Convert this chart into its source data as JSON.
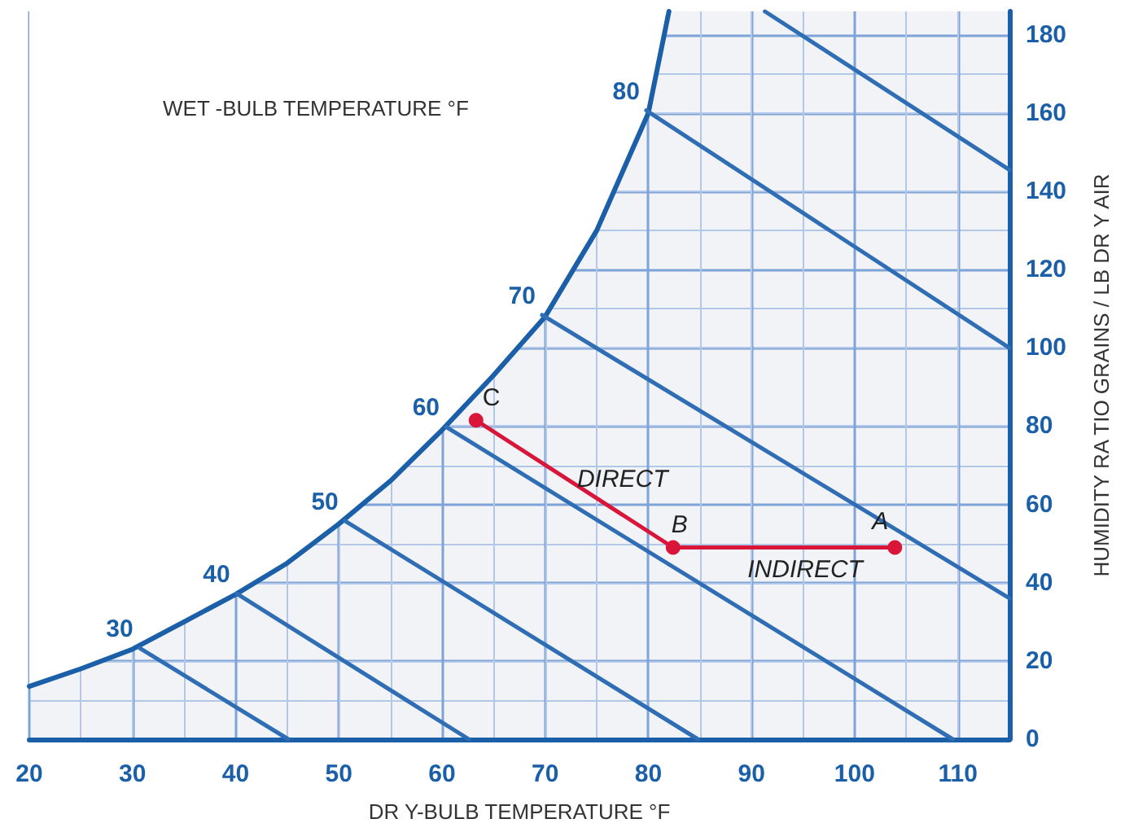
{
  "chart_data": {
    "type": "line",
    "xlabel": "DR Y-BULB TEMPERATURE °F",
    "ylabel": "HUMIDITY RA TIO GRAINS / LB DR Y AIR",
    "xlim": [
      20,
      115
    ],
    "xticks": [
      20,
      30,
      40,
      50,
      60,
      70,
      80,
      90,
      100,
      110
    ],
    "ylim": [
      0,
      186
    ],
    "yticks": [
      0,
      20,
      40,
      60,
      80,
      100,
      120,
      140,
      160,
      180
    ],
    "grid": true,
    "legend": false,
    "marker": "none",
    "line_style": "solid",
    "series": [
      {
        "color": "#1a5fa8",
        "x": [
          20,
          25,
          30,
          35,
          40,
          45,
          50,
          55,
          60,
          65,
          70,
          75,
          80,
          82
        ],
        "values": [
          13.5,
          18,
          23,
          30,
          37,
          45,
          55,
          66,
          79,
          93,
          108,
          130,
          160,
          186
        ]
      },
      {
        "color": "#2f6db5",
        "x": [
          30.7,
          45.1
        ],
        "values": [
          23.3,
          0
        ]
      },
      {
        "color": "#2f6db5",
        "x": [
          40.1,
          62.6
        ],
        "values": [
          37.2,
          0
        ]
      },
      {
        "color": "#2f6db5",
        "x": [
          50.6,
          84.8
        ],
        "values": [
          55.8,
          0
        ]
      },
      {
        "color": "#2f6db5",
        "x": [
          60.4,
          109.5
        ],
        "values": [
          79.8,
          0
        ]
      },
      {
        "color": "#2f6db5",
        "x": [
          69.7,
          115
        ],
        "values": [
          108.4,
          36
        ]
      },
      {
        "color": "#2f6db5",
        "x": [
          79.8,
          115
        ],
        "values": [
          160.7,
          100
        ]
      },
      {
        "color": "#2f6db5",
        "x": [
          91.3,
          115
        ],
        "values": [
          186,
          145.5
        ]
      },
      {
        "color": "#d9163a",
        "marker": "circle",
        "x": [
          63.3,
          82.4,
          103.9
        ],
        "values": [
          81.5,
          49,
          49
        ]
      }
    ],
    "annotations": [
      "WET -BULB TEMPERATURE °F",
      {
        "text": "30",
        "x": 30.7,
        "y": 23.3
      },
      {
        "text": "40",
        "x": 40.1,
        "y": 37.2
      },
      {
        "text": "50",
        "x": 50.6,
        "y": 55.8
      },
      {
        "text": "60",
        "x": 60.4,
        "y": 79.8
      },
      {
        "text": "70",
        "x": 69.7,
        "y": 108.4
      },
      {
        "text": "80",
        "x": 79.8,
        "y": 160.7
      },
      {
        "text": "A",
        "x": 103.9,
        "y": 49
      },
      {
        "text": "B",
        "x": 82.4,
        "y": 49
      },
      {
        "text": "C",
        "x": 63.3,
        "y": 81.5
      },
      {
        "text": "DIRECT",
        "x": 77.5,
        "y": 57.3
      },
      {
        "text": "INDIRECT",
        "x": 95.2,
        "y": 49
      }
    ]
  }
}
